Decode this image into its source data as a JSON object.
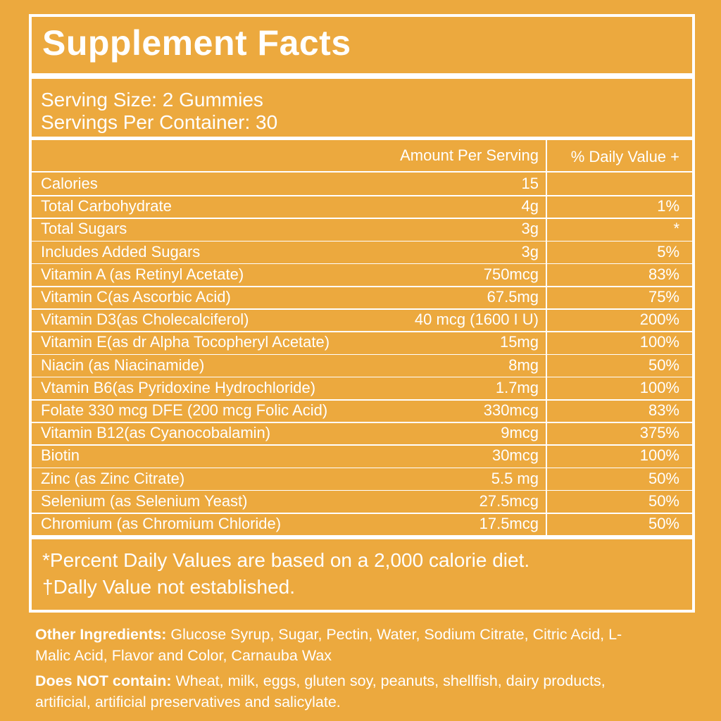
{
  "title": "Supplement Facts",
  "serving": {
    "size": "Serving Size: 2 Gummies",
    "per_container": "Servings Per Container: 30"
  },
  "table": {
    "header": {
      "amount": "Amount Per Serving",
      "dv": "% Daily Value +"
    },
    "rows": [
      {
        "name": "Calories",
        "amount": "15"
      },
      {
        "name": "Total Carbohydrate",
        "amount": "4g",
        "dv": "1%"
      },
      {
        "name": "Total Sugars",
        "amount": "3g",
        "dv": "*"
      },
      {
        "name": "Includes Added Sugars",
        "amount": "3g",
        "dv": "5%"
      },
      {
        "name": "Vitamin A (as Retinyl Acetate)",
        "amount": "750mcg",
        "dv": "83%"
      },
      {
        "name": "Vitamin C(as Ascorbic Acid)",
        "amount": "67.5mg",
        "dv": "75%"
      },
      {
        "name": "Vitamin D3(as Cholecalciferol)",
        "amount": "40 mcg (1600 I U)",
        "dv": "200%"
      },
      {
        "name": "Vitamin E(as dr Alpha Tocopheryl Acetate)",
        "amount": "15mg",
        "dv": "100%"
      },
      {
        "name": "Niacin (as Niacinamide)",
        "amount": "8mg",
        "dv": "50%"
      },
      {
        "name": "Vtamin B6(as Pyridoxine Hydrochloride)",
        "amount": "1.7mg",
        "dv": "100%"
      },
      {
        "name": "Folate 330 mcg  DFE (200 mcg Folic Acid)",
        "amount": "330mcg",
        "dv": "83%"
      },
      {
        "name": "Vitamin B12(as Cyanocobalamin)",
        "amount": "9mcg",
        "dv": "375%"
      },
      {
        "name": "Biotin",
        "amount": "30mcg",
        "dv": "100%"
      },
      {
        "name": "Zinc (as Zinc Citrate)",
        "amount": "5.5 mg",
        "dv": "50%"
      },
      {
        "name": "Selenium (as Selenium Yeast)",
        "amount": "27.5mcg",
        "dv": "50%"
      },
      {
        "name": "Chromium (as Chromium Chloride)",
        "amount": "17.5mcg",
        "dv": "50%"
      }
    ]
  },
  "footnotes": [
    "*Percent Daily Values are based on a 2,000 calorie diet.",
    "†Dally Value not established."
  ],
  "other_ingredients": {
    "label": "Other Ingredients:",
    "text": "Glucose Syrup, Sugar, Pectin, Water, Sodium Citrate, Citric Acid, L-Malic Acid, Flavor and Color, Carnauba Wax"
  },
  "does_not_contain": {
    "label": "Does NOT contain:",
    "text": "Wheat, milk, eggs, gluten soy, peanuts, shellfish, dairy products, artificial, artificial preservatives and salicylate."
  }
}
